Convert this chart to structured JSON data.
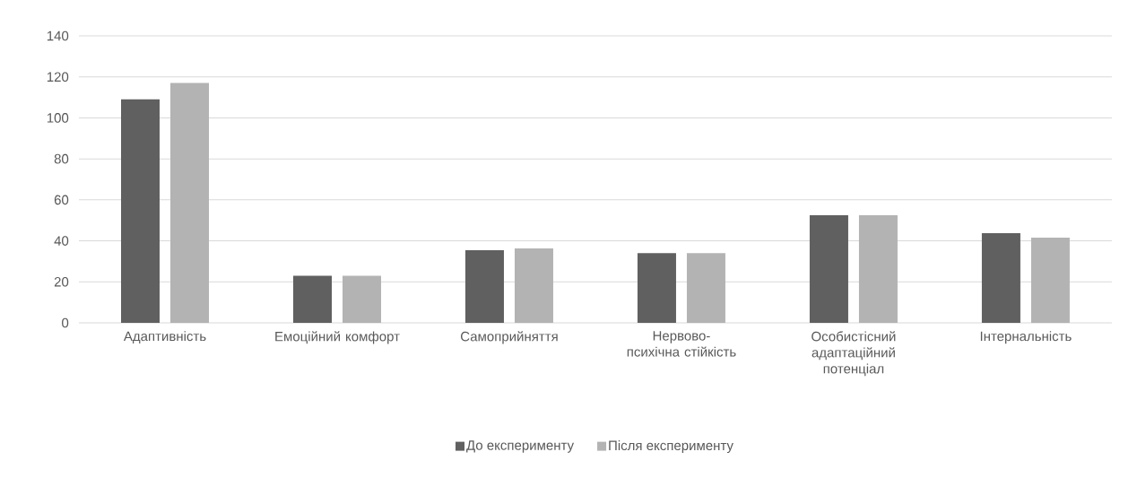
{
  "chart_data": {
    "type": "bar",
    "categories": [
      "Адаптивність",
      "Емоційний комфорт",
      "Самоприйняття",
      "Нервово-психічна стійкість",
      "Особистісний адаптаційний потенціал",
      "Інтернальність"
    ],
    "series": [
      {
        "name": "До експерименту",
        "color": "#606060",
        "values": [
          109,
          23,
          35.4,
          34,
          52.5,
          43.8
        ]
      },
      {
        "name": "Після експерименту",
        "color": "#b3b3b3",
        "values": [
          117,
          23,
          36.3,
          34,
          52.5,
          41.6
        ]
      }
    ],
    "ylim": [
      0,
      140
    ],
    "yticks": [
      0,
      20,
      40,
      60,
      80,
      100,
      120,
      140
    ],
    "grid": "y",
    "legend": "bottom"
  }
}
